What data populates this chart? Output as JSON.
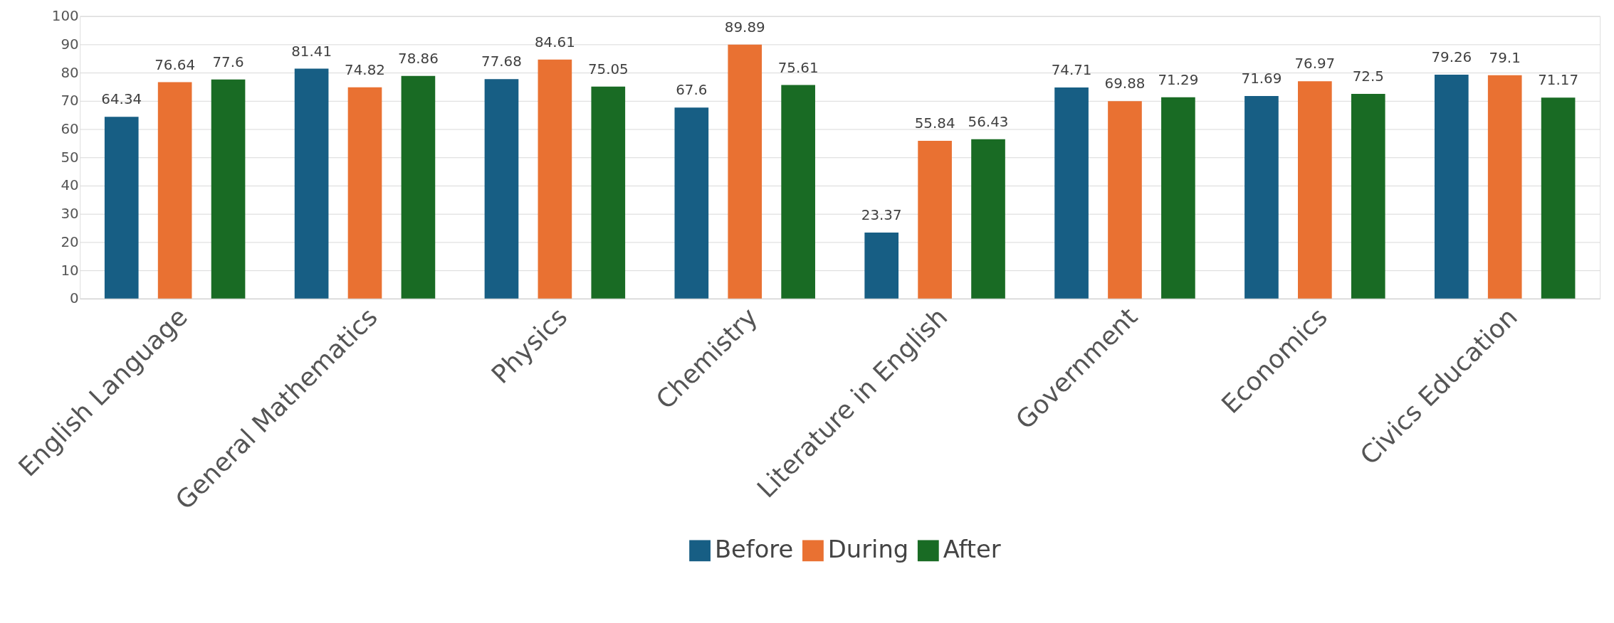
{
  "chart_data": {
    "type": "bar",
    "categories": [
      "English Language",
      "General Mathematics",
      "Physics",
      "Chemistry",
      "Literature in English",
      "Government",
      "Economics",
      "Civics Education"
    ],
    "series": [
      {
        "name": "Before",
        "color": "#175e84",
        "values": [
          64.34,
          81.41,
          77.68,
          67.6,
          23.37,
          74.71,
          71.69,
          79.26
        ]
      },
      {
        "name": "During",
        "color": "#e97132",
        "values": [
          76.64,
          74.82,
          84.61,
          89.89,
          55.84,
          69.88,
          76.97,
          79.1
        ]
      },
      {
        "name": "After",
        "color": "#196b24",
        "values": [
          77.6,
          78.86,
          75.05,
          75.61,
          56.43,
          71.29,
          72.5,
          71.17
        ]
      }
    ],
    "ylim": [
      0,
      100
    ],
    "yticks": [
      0,
      10,
      20,
      30,
      40,
      50,
      60,
      70,
      80,
      90,
      100
    ],
    "grid": "y",
    "legend": "bottom",
    "data_labels": true
  }
}
